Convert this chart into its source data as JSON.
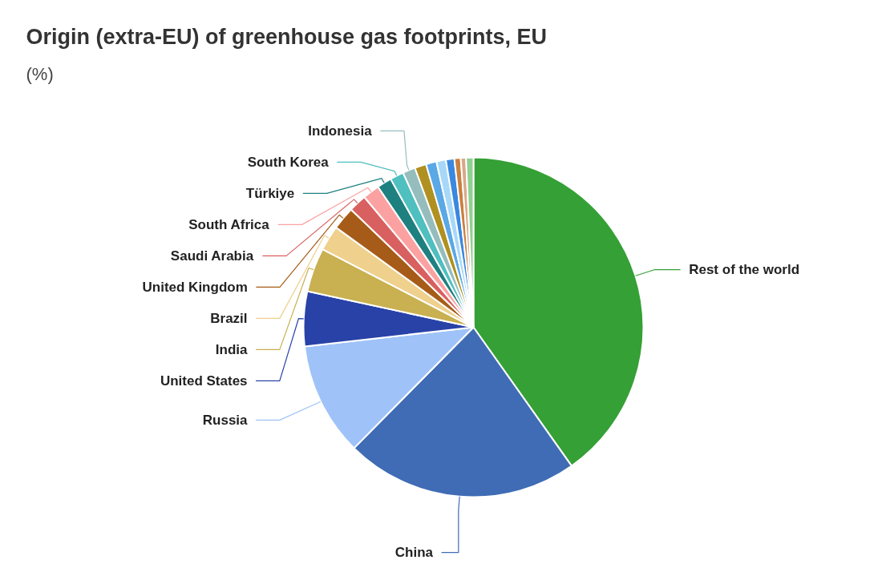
{
  "chart_data": {
    "type": "pie",
    "title": "Origin (extra-EU) of greenhouse gas footprints, EU",
    "subtitle": "(%)",
    "categories": [
      "Rest of the world",
      "China",
      "Russia",
      "United States",
      "India",
      "Brazil",
      "United Kingdom",
      "Saudi Arabia",
      "South Africa",
      "Türkiye",
      "South Korea",
      "Indonesia",
      null,
      null,
      null,
      null,
      null,
      null,
      null
    ],
    "values": [
      40.2,
      22.2,
      10.8,
      5.2,
      4.2,
      2.4,
      2.2,
      1.7,
      1.6,
      1.4,
      1.3,
      1.2,
      1.1,
      1.0,
      0.9,
      0.8,
      0.6,
      0.5,
      0.7
    ],
    "colors": [
      "#35a035",
      "#3f6cb4",
      "#9fc3f8",
      "#2842a8",
      "#c9b050",
      "#efd08c",
      "#a65c18",
      "#d96060",
      "#fca1a1",
      "#1f8080",
      "#4fbfbf",
      "#95bdbd",
      "#b09020",
      "#5aa8e6",
      "#a8d8f8",
      "#3a88e0",
      "#c98040",
      "#d8a888",
      "#90d090"
    ],
    "grid": false
  }
}
